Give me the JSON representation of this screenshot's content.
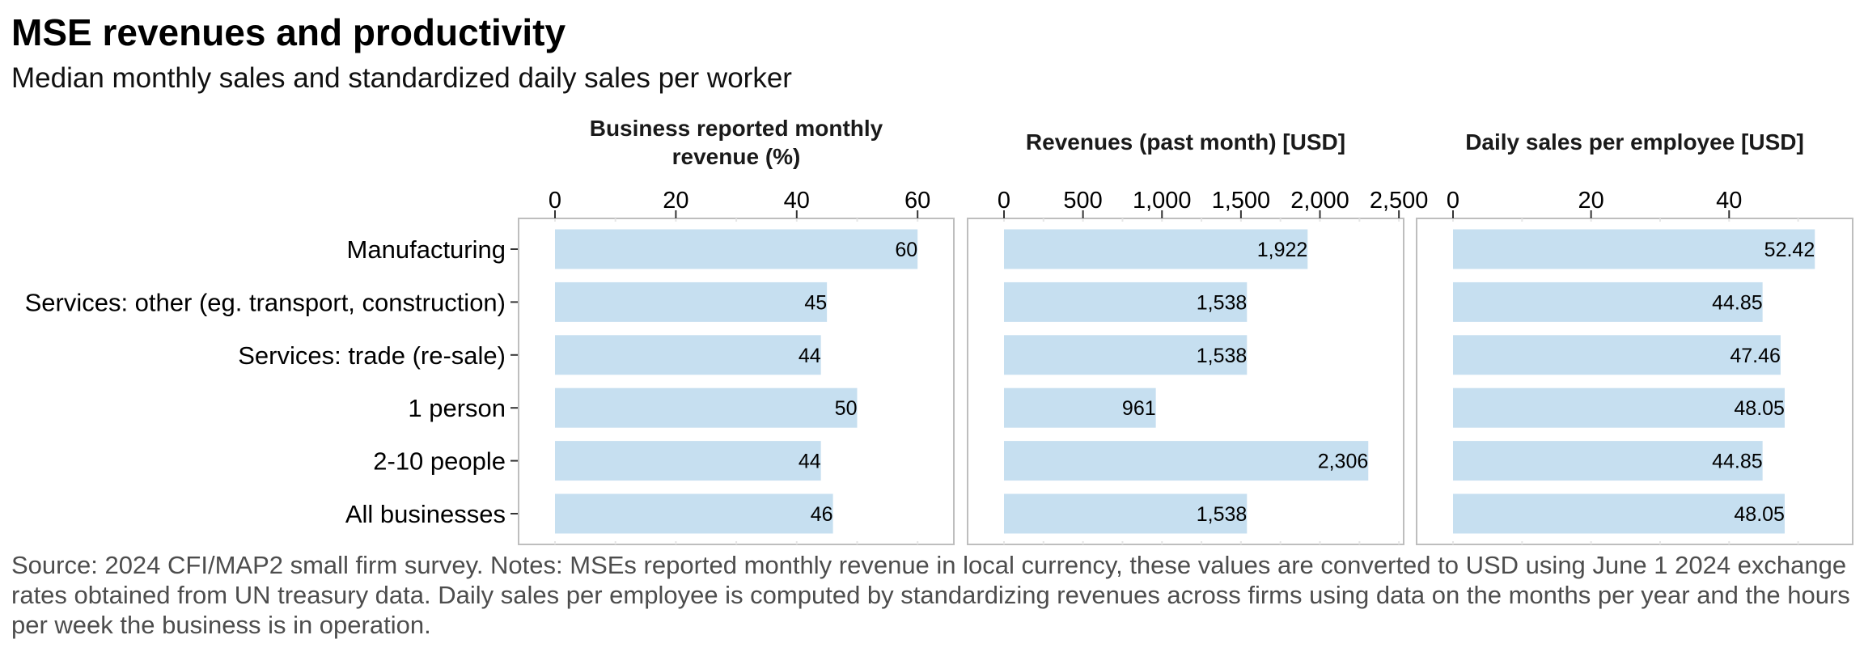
{
  "title": "MSE revenues and productivity",
  "subtitle": "Median monthly sales and standardized daily sales per worker",
  "caption": "Source: 2024 CFI/MAP2 small firm survey. Notes: MSEs reported monthly revenue in local currency, these values are converted to USD using June 1 2024 exchange rates obtained from UN treasury data. Daily sales per employee is computed by standardizing revenues across firms using data on the months per year and the hours per week the business is in operation.",
  "colors": {
    "bar": "#c6dff0",
    "panel_border": "#bebebe",
    "text": "#000000",
    "caption": "#4d4d4d"
  },
  "chart_data": {
    "type": "bar",
    "orientation": "horizontal",
    "categories": [
      "Manufacturing",
      "Services: other (eg. transport, construction)",
      "Services: trade (re-sale)",
      "1 person",
      "2-10 people",
      "All businesses"
    ],
    "panels": [
      {
        "title_lines": [
          "Business reported monthly",
          "revenue (%)"
        ],
        "xlim": [
          0,
          66
        ],
        "ticks": [
          0,
          20,
          40,
          60
        ],
        "tick_labels": [
          "0",
          "20",
          "40",
          "60"
        ],
        "minor_ticks": [
          10,
          30,
          50
        ],
        "values": [
          60,
          45,
          44,
          50,
          44,
          46
        ],
        "value_labels": [
          "60",
          "45",
          "44",
          "50",
          "44",
          "46"
        ]
      },
      {
        "title_lines": [
          "Revenues (past month) [USD]"
        ],
        "xlim": [
          0,
          2530
        ],
        "ticks": [
          0,
          500,
          1000,
          1500,
          2000,
          2500
        ],
        "tick_labels": [
          "0",
          "500",
          "1,000",
          "1,500",
          "2,000",
          "2,500"
        ],
        "minor_ticks": [
          250,
          750,
          1250,
          1750,
          2250
        ],
        "values": [
          1922,
          1538,
          1538,
          961,
          2306,
          1538
        ],
        "value_labels": [
          "1,922",
          "1,538",
          "1,538",
          "961",
          "2,306",
          "1,538"
        ]
      },
      {
        "title_lines": [
          "Daily sales per employee [USD]"
        ],
        "xlim": [
          0,
          57.9
        ],
        "ticks": [
          0,
          20,
          40
        ],
        "tick_labels": [
          "0",
          "20",
          "40"
        ],
        "minor_ticks": [
          10,
          30,
          50
        ],
        "values": [
          52.42,
          44.85,
          47.46,
          48.05,
          44.85,
          48.05
        ],
        "value_labels": [
          "52.42",
          "44.85",
          "47.46",
          "48.05",
          "44.85",
          "48.05"
        ]
      }
    ],
    "xlabel": "",
    "ylabel": "",
    "grid": false,
    "legend": "none"
  }
}
